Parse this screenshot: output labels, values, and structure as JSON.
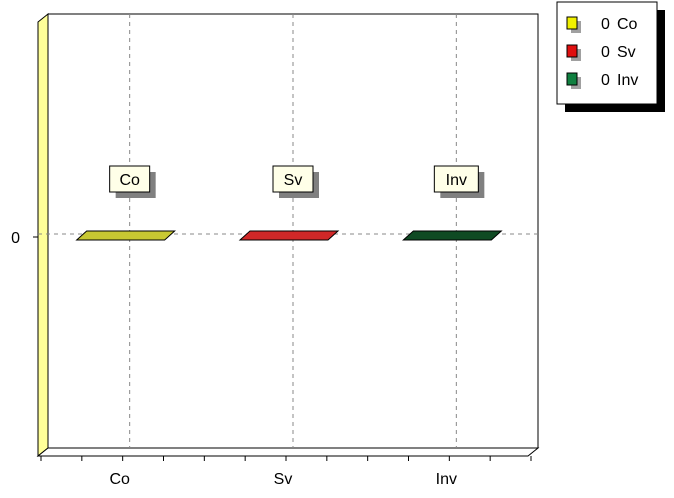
{
  "chart_data": {
    "type": "bar",
    "categories": [
      "Co",
      "Sv",
      "Inv"
    ],
    "values": [
      0,
      0,
      0
    ],
    "colors": [
      "#c8c832",
      "#d02828",
      "#0f4a23"
    ],
    "y_ticks": [
      "0"
    ],
    "bar_labels": [
      "Co",
      "Sv",
      "Inv"
    ],
    "legend": {
      "placement": "top-right",
      "entries": [
        {
          "value": "0",
          "label": "Co",
          "color": "#f0f000"
        },
        {
          "value": "0",
          "label": "Sv",
          "color": "#e01010"
        },
        {
          "value": "0",
          "label": "Inv",
          "color": "#108040"
        }
      ]
    },
    "grid": true,
    "wall_color": "#ffff99"
  }
}
